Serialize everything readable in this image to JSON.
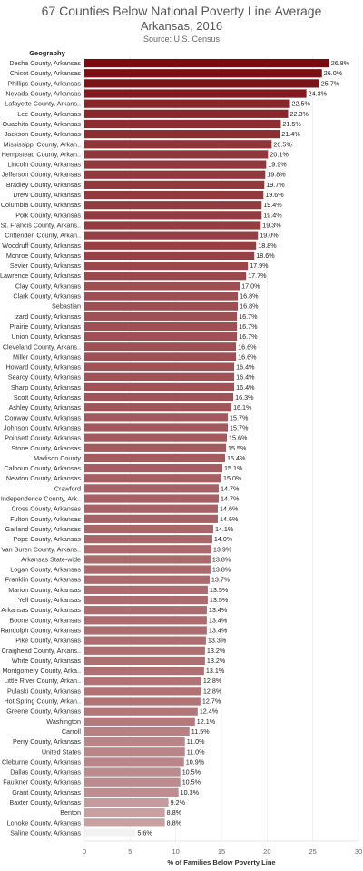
{
  "chart_data": {
    "type": "bar",
    "orientation": "horizontal",
    "title": "67 Counties Below National Poverty Line Average",
    "subtitle": "Arkansas, 2016",
    "source": "Source: U.S. Census",
    "row_header": "Geography",
    "xlabel": "% of Families Below Poverty Line",
    "xlim": [
      0,
      30
    ],
    "xticks": [
      "0",
      "5",
      "10",
      "15",
      "20",
      "25",
      "30"
    ],
    "grid": true,
    "color_low": "#f2f2f2",
    "color_high": "#7a0b10",
    "categories": [
      "Desha County, Arkansas",
      "Chicot County, Arkansas",
      "Phillips County, Arkansas",
      "Nevada County, Arkansas",
      "Lafayette County, Arkans..",
      "Lee County, Arkansas",
      "Ouachita County, Arkansas",
      "Jackson County, Arkansas",
      "Mississippi County, Arkan..",
      "Hempstead County, Arkan..",
      "Lincoln County, Arkansas",
      "Jefferson County, Arkansas",
      "Bradley County, Arkansas",
      "Drew County, Arkansas",
      "Columbia County, Arkansas",
      "Polk County, Arkansas",
      "St. Francis County, Arkans..",
      "Crittenden County, Arkan..",
      "Woodruff County, Arkansas",
      "Monroe County, Arkansas",
      "Sevier County, Arkansas",
      "Lawrence County, Arkansas",
      "Clay County, Arkansas",
      "Clark County, Arkansas",
      "Sebastian",
      "Izard County, Arkansas",
      "Prairie County, Arkansas",
      "Union County, Arkansas",
      "Cleveland County, Arkans..",
      "Miller County, Arkansas",
      "Howard County, Arkansas",
      "Searcy County, Arkansas",
      "Sharp County, Arkansas",
      "Scott County, Arkansas",
      "Ashley County, Arkansas",
      "Conway County, Arkansas",
      "Johnson County, Arkansas",
      "Poinsett County, Arkansas",
      "Stone County, Arkansas",
      "Madison County",
      "Calhoun County, Arkansas",
      "Newton County, Arkansas",
      "Crawford",
      "Independence County, Ark..",
      "Cross County, Arkansas",
      "Fulton County, Arkansas",
      "Garland County, Arkansas",
      "Pope County, Arkansas",
      "Van Buren County, Arkans..",
      "Arkansas State-wide",
      "Logan County, Arkansas",
      "Franklin County, Arkansas",
      "Marion County, Arkansas",
      "Yell County, Arkansas",
      "Arkansas County, Arkansas",
      "Boone County, Arkansas",
      "Randolph County, Arkansas",
      "Pike County, Arkansas",
      "Craighead County, Arkans..",
      "White County, Arkansas",
      "Montgomery County, Arka..",
      "Little River County, Arkan..",
      "Pulaski County, Arkansas",
      "Hot Spring County, Arkan..",
      "Greene County, Arkansas",
      "Washington",
      "Carroll",
      "Perry County, Arkansas",
      "United States",
      "Cleburne County, Arkansas",
      "Dallas County, Arkansas",
      "Faulkner County, Arkansas",
      "Grant County, Arkansas",
      "Baxter County, Arkansas",
      "Benton",
      "Lonoke County, Arkansas",
      "Saline County, Arkansas"
    ],
    "values": [
      26.8,
      26.0,
      25.7,
      24.3,
      22.5,
      22.3,
      21.5,
      21.4,
      20.5,
      20.1,
      19.9,
      19.8,
      19.7,
      19.6,
      19.4,
      19.4,
      19.3,
      19.0,
      18.8,
      18.6,
      17.9,
      17.7,
      17.0,
      16.8,
      16.8,
      16.7,
      16.7,
      16.7,
      16.6,
      16.6,
      16.4,
      16.4,
      16.4,
      16.3,
      16.1,
      15.7,
      15.7,
      15.6,
      15.5,
      15.4,
      15.1,
      15.0,
      14.7,
      14.7,
      14.6,
      14.6,
      14.1,
      14.0,
      13.9,
      13.8,
      13.8,
      13.7,
      13.5,
      13.5,
      13.4,
      13.4,
      13.4,
      13.3,
      13.2,
      13.2,
      13.1,
      12.8,
      12.8,
      12.7,
      12.4,
      12.1,
      11.5,
      11.0,
      11.0,
      10.9,
      10.5,
      10.5,
      10.3,
      9.2,
      8.8,
      8.8,
      5.6
    ],
    "value_labels": [
      "26.8%",
      "26.0%",
      "25.7%",
      "24.3%",
      "22.5%",
      "22.3%",
      "21.5%",
      "21.4%",
      "20.5%",
      "20.1%",
      "19.9%",
      "19.8%",
      "19.7%",
      "19.6%",
      "19.4%",
      "19.4%",
      "19.3%",
      "19.0%",
      "18.8%",
      "18.6%",
      "17.9%",
      "17.7%",
      "17.0%",
      "16.8%",
      "16.8%",
      "16.7%",
      "16.7%",
      "16.7%",
      "16.6%",
      "16.6%",
      "16.4%",
      "16.4%",
      "16.4%",
      "16.3%",
      "16.1%",
      "15.7%",
      "15.7%",
      "15.6%",
      "15.5%",
      "15.4%",
      "15.1%",
      "15.0%",
      "14.7%",
      "14.7%",
      "14.6%",
      "14.6%",
      "14.1%",
      "14.0%",
      "13.9%",
      "13.8%",
      "13.8%",
      "13.7%",
      "13.5%",
      "13.5%",
      "13.4%",
      "13.4%",
      "13.4%",
      "13.3%",
      "13.2%",
      "13.2%",
      "13.1%",
      "12.8%",
      "12.8%",
      "12.7%",
      "12.4%",
      "12.1%",
      "11.5%",
      "11.0%",
      "11.0%",
      "10.9%",
      "10.5%",
      "10.5%",
      "10.3%",
      "9.2%",
      "8.8%",
      "8.8%",
      "5.6%"
    ]
  }
}
